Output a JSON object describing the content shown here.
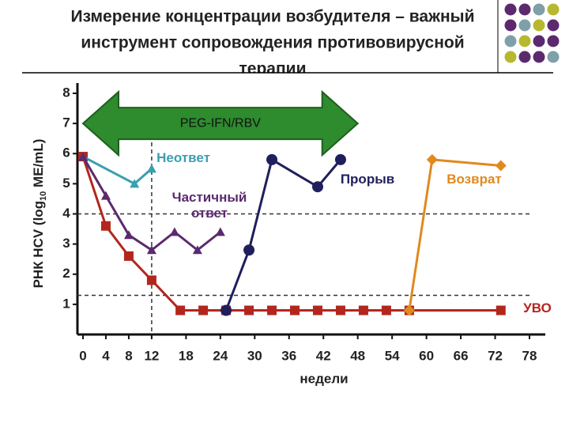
{
  "chart_data": {
    "type": "line",
    "title": [
      "Измерение концентрации возбудителя – важный",
      "инструмент сопровождения противовирусной",
      "терапии"
    ],
    "x_label": "недели",
    "y_label": [
      "РНК HCV (log",
      "10",
      " МЕ/mL)"
    ],
    "xlim": [
      0,
      78
    ],
    "xticks": [
      0,
      4,
      8,
      12,
      18,
      24,
      30,
      36,
      42,
      48,
      54,
      60,
      66,
      72,
      78
    ],
    "ylim": [
      0,
      8
    ],
    "yticks": [
      1,
      2,
      3,
      4,
      5,
      6,
      7,
      8
    ],
    "hlines": [
      4,
      1.3
    ],
    "vlines": [
      12
    ],
    "arrow": {
      "label": "PEG-IFN/RBV",
      "x": [
        0,
        48
      ],
      "y": 7,
      "color": "#2e8b2e"
    },
    "series": [
      {
        "name": "УВО",
        "color": "#b3261e",
        "marker": "square",
        "x": [
          0,
          4,
          8,
          12,
          17,
          21,
          25,
          29,
          33,
          37,
          41,
          45,
          49,
          53,
          57,
          73
        ],
        "values": [
          5.9,
          3.6,
          2.6,
          1.8,
          0.8,
          0.8,
          0.8,
          0.8,
          0.8,
          0.8,
          0.8,
          0.8,
          0.8,
          0.8,
          0.8,
          0.8
        ]
      },
      {
        "name": "Неответ",
        "color": "#3a9fb0",
        "marker": "triangle",
        "x": [
          0,
          9,
          12
        ],
        "values": [
          5.9,
          5.0,
          5.5
        ]
      },
      {
        "name": "Частичный ответ",
        "color": "#5b2a6e",
        "marker": "triangle",
        "x": [
          0,
          4,
          8,
          12,
          16,
          20,
          24
        ],
        "values": [
          5.9,
          4.6,
          3.3,
          2.8,
          3.4,
          2.8,
          3.4
        ]
      },
      {
        "name": "Прорыв",
        "color": "#1f1f5c",
        "marker": "circle",
        "x": [
          25,
          29,
          33,
          41,
          45
        ],
        "values": [
          0.8,
          2.8,
          5.8,
          4.9,
          5.8
        ]
      },
      {
        "name": "Возврат",
        "color": "#e08a1e",
        "marker": "diamond",
        "x": [
          57,
          61,
          73
        ],
        "values": [
          0.8,
          5.8,
          5.6
        ]
      }
    ]
  }
}
